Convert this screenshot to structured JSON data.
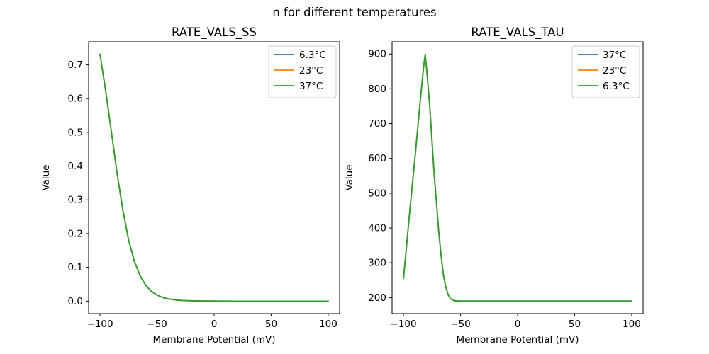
{
  "figure": {
    "title": "n for different temperatures",
    "background": "#ffffff"
  },
  "colors": {
    "matplotlib_blue": "#1f77b4",
    "matplotlib_orange": "#ff7f0e",
    "matplotlib_green": "#2ca02c",
    "axes_frame": "#000000",
    "legend_border": "#cccccc"
  },
  "chart_data": [
    {
      "name": "rate-vals-ss",
      "type": "line",
      "title": "RATE_VALS_SS",
      "xlabel": "Membrane Potential (mV)",
      "ylabel": "Value",
      "xlim": [
        -110,
        110
      ],
      "ylim": [
        -0.037,
        0.768
      ],
      "xticks": [
        -100,
        -50,
        0,
        50,
        100
      ],
      "yticks": [
        0.0,
        0.1,
        0.2,
        0.3,
        0.4,
        0.5,
        0.6,
        0.7
      ],
      "ytick_decimals": 1,
      "grid": false,
      "legend_position": "upper right",
      "note": "All three temperature curves coincide exactly; only the last-drawn (green) is visible.",
      "x": [
        -100,
        -95,
        -90,
        -85,
        -80,
        -75,
        -70,
        -65,
        -60,
        -55,
        -50,
        -45,
        -40,
        -35,
        -30,
        -25,
        -20,
        -10,
        0,
        20,
        40,
        60,
        80,
        100
      ],
      "series": [
        {
          "name": "6.3°C",
          "color": "#1f77b4",
          "values": [
            0.731,
            0.622,
            0.5,
            0.378,
            0.269,
            0.182,
            0.119,
            0.076,
            0.047,
            0.029,
            0.018,
            0.011,
            0.0067,
            0.004,
            0.0025,
            0.0015,
            0.0009,
            0.0003,
            0.0001,
            0,
            0,
            0,
            0,
            0
          ]
        },
        {
          "name": "23°C",
          "color": "#ff7f0e",
          "values": [
            0.731,
            0.622,
            0.5,
            0.378,
            0.269,
            0.182,
            0.119,
            0.076,
            0.047,
            0.029,
            0.018,
            0.011,
            0.0067,
            0.004,
            0.0025,
            0.0015,
            0.0009,
            0.0003,
            0.0001,
            0,
            0,
            0,
            0,
            0
          ]
        },
        {
          "name": "37°C",
          "color": "#2ca02c",
          "values": [
            0.731,
            0.622,
            0.5,
            0.378,
            0.269,
            0.182,
            0.119,
            0.076,
            0.047,
            0.029,
            0.018,
            0.011,
            0.0067,
            0.004,
            0.0025,
            0.0015,
            0.0009,
            0.0003,
            0.0001,
            0,
            0,
            0,
            0,
            0
          ]
        }
      ]
    },
    {
      "name": "rate-vals-tau",
      "type": "line",
      "title": "RATE_VALS_TAU",
      "xlabel": "Membrane Potential (mV)",
      "ylabel": "Value",
      "xlim": [
        -110,
        110
      ],
      "ylim": [
        154,
        935
      ],
      "xticks": [
        -100,
        -50,
        0,
        50,
        100
      ],
      "yticks": [
        200,
        300,
        400,
        500,
        600,
        700,
        800,
        900
      ],
      "ytick_decimals": 0,
      "grid": false,
      "legend_position": "upper right",
      "note": "All three temperature curves coincide exactly; only the last-drawn (green) is visible. Peak ~900 at ~-81 mV, plateau ~190.",
      "x": [
        -100,
        -97.5,
        -95,
        -92.5,
        -90,
        -87.5,
        -85,
        -82.5,
        -81,
        -79,
        -77,
        -75,
        -73,
        -71,
        -69,
        -67,
        -65,
        -63,
        -61,
        -59,
        -57,
        -55,
        -52,
        -50,
        -45,
        -40,
        -30,
        -20,
        -10,
        0,
        20,
        40,
        60,
        80,
        100
      ],
      "series": [
        {
          "name": "37°C",
          "color": "#1f77b4",
          "values": [
            255,
            342,
            430,
            517,
            600,
            688,
            775,
            860,
            899,
            830,
            750,
            650,
            550,
            468,
            385,
            320,
            265,
            232,
            210,
            198,
            193,
            191,
            190,
            190,
            190,
            190,
            190,
            190,
            190,
            190,
            190,
            190,
            190,
            190,
            190
          ]
        },
        {
          "name": "23°C",
          "color": "#ff7f0e",
          "values": [
            255,
            342,
            430,
            517,
            600,
            688,
            775,
            860,
            899,
            830,
            750,
            650,
            550,
            468,
            385,
            320,
            265,
            232,
            210,
            198,
            193,
            191,
            190,
            190,
            190,
            190,
            190,
            190,
            190,
            190,
            190,
            190,
            190,
            190,
            190
          ]
        },
        {
          "name": "6.3°C",
          "color": "#2ca02c",
          "values": [
            255,
            342,
            430,
            517,
            600,
            688,
            775,
            860,
            899,
            830,
            750,
            650,
            550,
            468,
            385,
            320,
            265,
            232,
            210,
            198,
            193,
            191,
            190,
            190,
            190,
            190,
            190,
            190,
            190,
            190,
            190,
            190,
            190,
            190,
            190
          ]
        }
      ]
    }
  ]
}
